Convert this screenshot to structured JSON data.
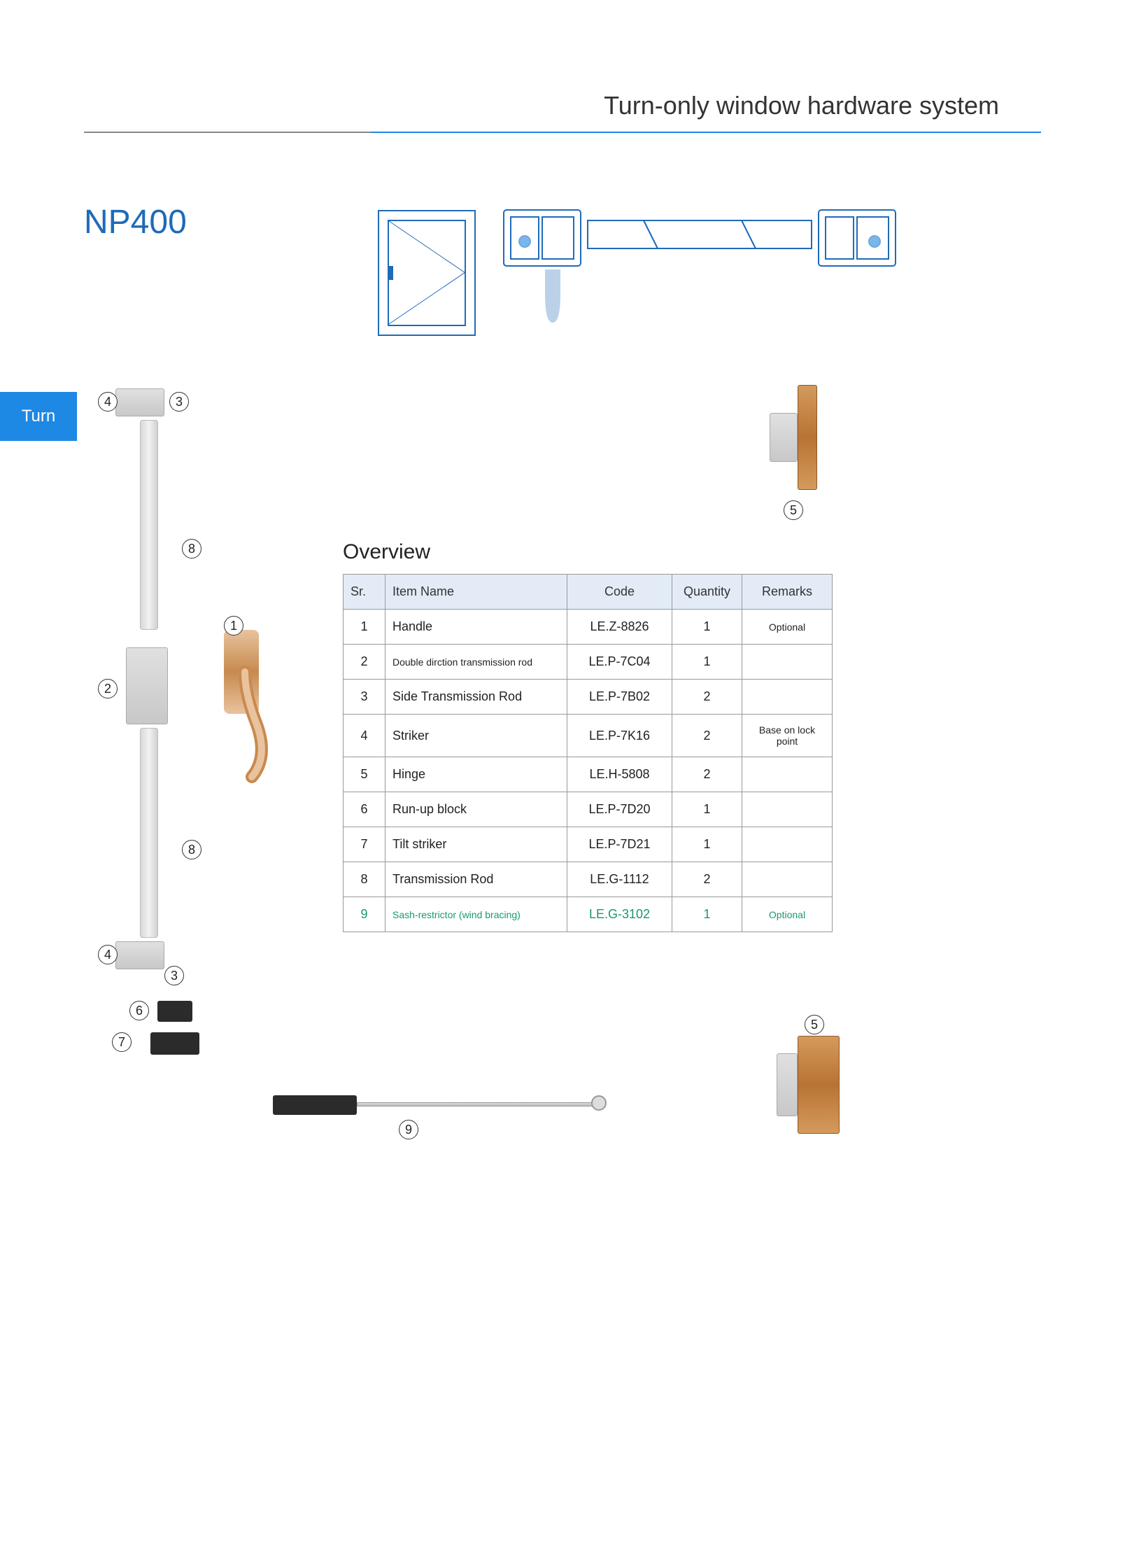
{
  "header": {
    "title": "Turn-only window hardware system"
  },
  "model": "NP400",
  "sideTab": "Turn",
  "overview": {
    "title": "Overview",
    "columns": {
      "sr": "Sr.",
      "item": "Item Name",
      "code": "Code",
      "qty": "Quantity",
      "remarks": "Remarks"
    },
    "rows": [
      {
        "sr": "1",
        "item": "Handle",
        "code": "LE.Z-8826",
        "qty": "1",
        "remarks": "Optional",
        "green": false
      },
      {
        "sr": "2",
        "item": "Double dirction transmission rod",
        "code": "LE.P-7C04",
        "qty": "1",
        "remarks": "",
        "green": false
      },
      {
        "sr": "3",
        "item": "Side Transmission Rod",
        "code": "LE.P-7B02",
        "qty": "2",
        "remarks": "",
        "green": false
      },
      {
        "sr": "4",
        "item": "Striker",
        "code": "LE.P-7K16",
        "qty": "2",
        "remarks": "Base on lock point",
        "green": false
      },
      {
        "sr": "5",
        "item": "Hinge",
        "code": "LE.H-5808",
        "qty": "2",
        "remarks": "",
        "green": false
      },
      {
        "sr": "6",
        "item": "Run-up block",
        "code": "LE.P-7D20",
        "qty": "1",
        "remarks": "",
        "green": false
      },
      {
        "sr": "7",
        "item": "Tilt striker",
        "code": "LE.P-7D21",
        "qty": "1",
        "remarks": "",
        "green": false
      },
      {
        "sr": "8",
        "item": "Transmission Rod",
        "code": "LE.G-1112",
        "qty": "2",
        "remarks": "",
        "green": false
      },
      {
        "sr": "9",
        "item": "Sash-restrictor (wind bracing)",
        "code": "LE.G-3102",
        "qty": "1",
        "remarks": "Optional",
        "green": true
      }
    ]
  },
  "callouts": {
    "c1": "1",
    "c2": "2",
    "c3t": "3",
    "c3b": "3",
    "c4t": "4",
    "c4b": "4",
    "c5t": "5",
    "c5b": "5",
    "c6": "6",
    "c7": "7",
    "c8t": "8",
    "c8b": "8",
    "c9": "9"
  },
  "colors": {
    "accent": "#1e88e5",
    "model": "#1e6bb8",
    "green": "#159b6e",
    "copper": "#c88a4f"
  }
}
